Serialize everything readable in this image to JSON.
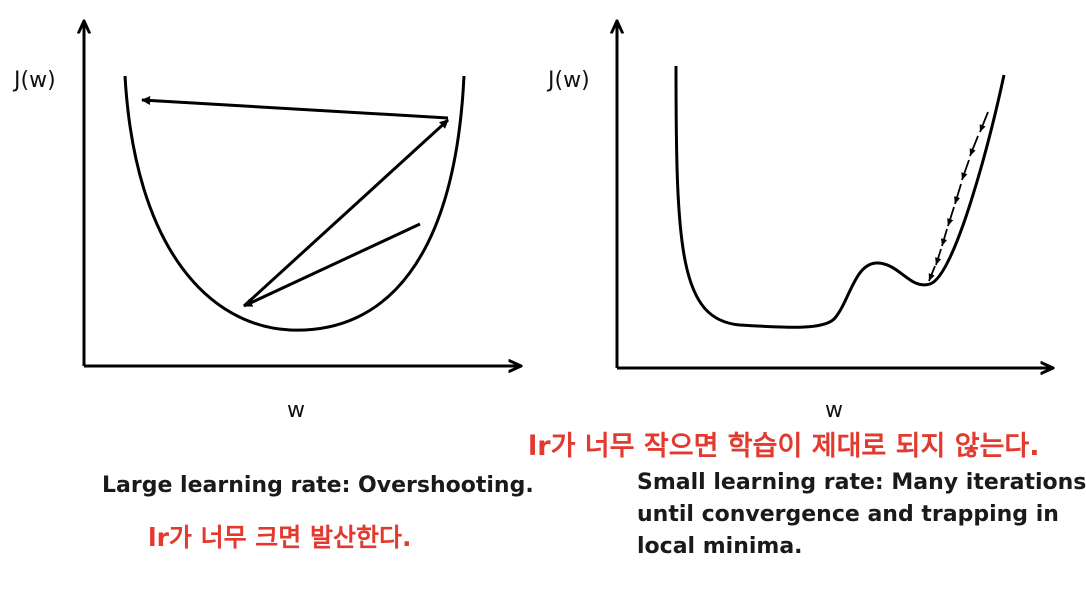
{
  "left_panel": {
    "y_axis_label": "J(w)",
    "x_axis_label": "w",
    "caption": "Large learning rate: Overshooting.",
    "annotation": "lr가 너무 크면 발산한다."
  },
  "right_panel": {
    "y_axis_label": "J(w)",
    "x_axis_label": "w",
    "caption_lines": [
      "Small learning rate: Many iterations",
      "until convergence and trapping in",
      "local minima."
    ],
    "annotation": "lr가 너무 작으면 학습이 제대로 되지 않는다."
  },
  "colors": {
    "annotation": "#e23a2f",
    "lines": "#000000"
  }
}
